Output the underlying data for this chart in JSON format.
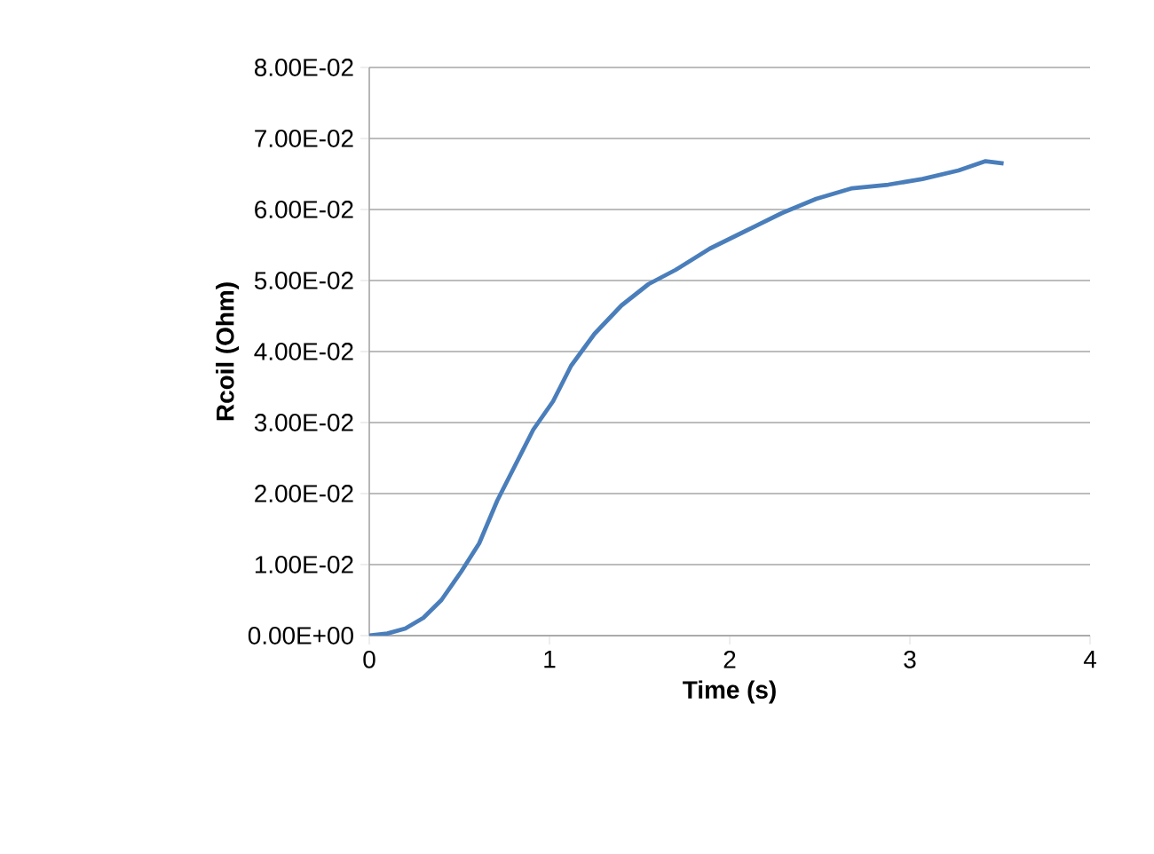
{
  "chart_data": {
    "type": "line",
    "xlabel": "Time (s)",
    "ylabel": "Rcoil (Ohm)",
    "x": [
      0,
      0.1,
      0.2,
      0.3,
      0.4,
      0.51,
      0.61,
      0.71,
      0.81,
      0.91,
      1.02,
      1.12,
      1.25,
      1.4,
      1.55,
      1.7,
      1.89,
      2.09,
      2.29,
      2.48,
      2.68,
      2.88,
      3.07,
      3.27,
      3.42,
      3.52
    ],
    "series": [
      {
        "color": "#4a7ebb",
        "values": [
          0,
          0.0003,
          0.001,
          0.0025,
          0.005,
          0.009,
          0.013,
          0.019,
          0.024,
          0.029,
          0.033,
          0.038,
          0.0425,
          0.0465,
          0.0495,
          0.0515,
          0.0545,
          0.057,
          0.0595,
          0.0615,
          0.063,
          0.0635,
          0.0643,
          0.0655,
          0.0668,
          0.0665
        ]
      }
    ],
    "xlim": [
      0,
      4
    ],
    "ylim": [
      0,
      0.08
    ],
    "xticks": [
      0,
      1,
      2,
      3,
      4
    ],
    "yticks": [
      {
        "value": 0,
        "label": "0.00E+00"
      },
      {
        "value": 0.01,
        "label": "1.00E-02"
      },
      {
        "value": 0.02,
        "label": "2.00E-02"
      },
      {
        "value": 0.03,
        "label": "3.00E-02"
      },
      {
        "value": 0.04,
        "label": "4.00E-02"
      },
      {
        "value": 0.05,
        "label": "5.00E-02"
      },
      {
        "value": 0.06,
        "label": "6.00E-02"
      },
      {
        "value": 0.07,
        "label": "7.00E-02"
      },
      {
        "value": 0.08,
        "label": "8.00E-02"
      }
    ],
    "grid": "y"
  }
}
